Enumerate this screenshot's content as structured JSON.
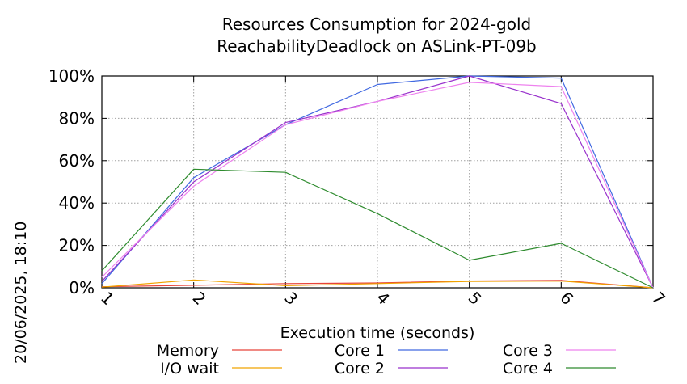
{
  "chart_data": {
    "type": "line",
    "title_lines": [
      "Resources Consumption for 2024-gold",
      "ReachabilityDeadlock on ASLink-PT-09b"
    ],
    "xlabel": "Execution time (seconds)",
    "ylabel": "",
    "side_label": "20/06/2025, 18:10",
    "x": [
      1,
      2,
      3,
      4,
      5,
      6,
      7
    ],
    "x_ticks": [
      "1",
      "2",
      "3",
      "4",
      "5",
      "6",
      "7"
    ],
    "y_ticks": [
      "0%",
      "20%",
      "40%",
      "60%",
      "80%",
      "100%"
    ],
    "xlim": [
      1,
      7
    ],
    "ylim": [
      0,
      100
    ],
    "grid": true,
    "legend_position": "bottom",
    "series": [
      {
        "name": "Memory",
        "color": "#e8443a",
        "values": [
          0.5,
          1.2,
          2.0,
          2.3,
          3.2,
          3.5,
          0.0
        ]
      },
      {
        "name": "I/O wait",
        "color": "#f0a300",
        "values": [
          0.3,
          3.7,
          1.0,
          2.0,
          3.0,
          3.2,
          0.0
        ]
      },
      {
        "name": "Core 1",
        "color": "#4169e1",
        "values": [
          2.0,
          52.0,
          77.0,
          96.0,
          100.0,
          99.0,
          0.0
        ]
      },
      {
        "name": "Core 2",
        "color": "#9932cc",
        "values": [
          3.0,
          50.0,
          78.0,
          88.0,
          100.0,
          87.0,
          0.0
        ]
      },
      {
        "name": "Core 3",
        "color": "#ee82ee",
        "values": [
          5.0,
          48.0,
          77.0,
          88.0,
          97.0,
          95.0,
          0.0
        ]
      },
      {
        "name": "Core 4",
        "color": "#2e8b2e",
        "values": [
          8.0,
          56.0,
          54.5,
          35.0,
          13.0,
          21.0,
          0.0
        ]
      }
    ]
  }
}
